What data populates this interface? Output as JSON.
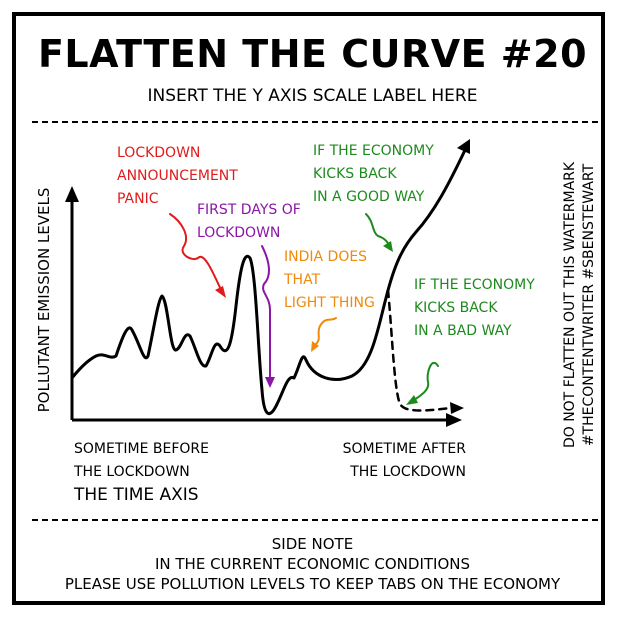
{
  "title": "FLATTEN THE CURVE #20",
  "subtitle": "INSERT THE Y AXIS SCALE LABEL HERE",
  "y_axis_title": "POLLUTANT EMISSION LEVELS",
  "x_axis_title": "THE TIME AXIS",
  "x_start_label": [
    "SOMETIME BEFORE",
    "THE LOCKDOWN"
  ],
  "x_end_label": [
    "SOMETIME AFTER",
    "THE LOCKDOWN"
  ],
  "annotations": {
    "lockdown_panic": {
      "lines": [
        "LOCKDOWN",
        "ANNOUNCEMENT",
        "PANIC"
      ],
      "color": "#e01b1b"
    },
    "first_days": {
      "lines": [
        "FIRST DAYS OF",
        "LOCKDOWN"
      ],
      "color": "#8b16a6"
    },
    "india": {
      "lines": [
        "INDIA DOES",
        "THAT",
        "LIGHT THING"
      ],
      "color": "#f08a0a"
    },
    "economy_good": {
      "lines": [
        "IF THE ECONOMY",
        "KICKS BACK",
        "IN A GOOD WAY"
      ],
      "color": "#1e8a1e"
    },
    "economy_bad": {
      "lines": [
        "IF THE ECONOMY",
        "KICKS BACK",
        "IN A BAD WAY"
      ],
      "color": "#1e8a1e"
    }
  },
  "watermark": [
    "DO NOT FLATTEN OUT THIS WATERMARK",
    "#THECONTENTWRITER #SBENSTEWART"
  ],
  "side_note": [
    "SIDE NOTE",
    "IN THE CURRENT ECONOMIC CONDITIONS",
    "PLEASE USE POLLUTION LEVELS TO KEEP TABS ON THE ECONOMY"
  ]
}
